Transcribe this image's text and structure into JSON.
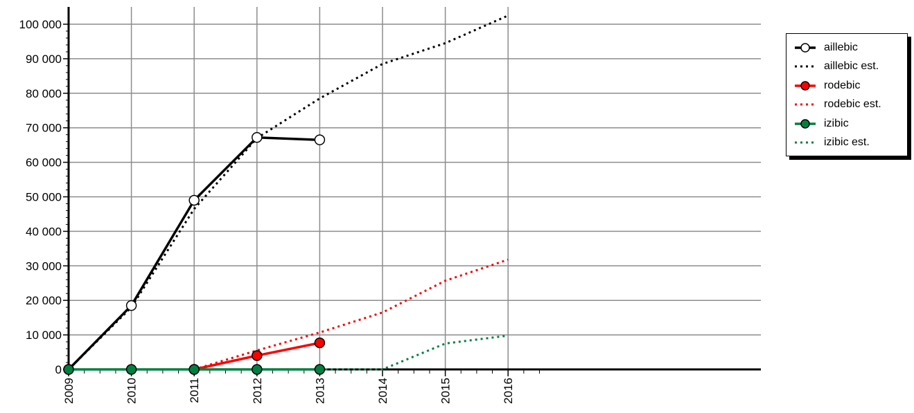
{
  "chart_data": {
    "type": "line",
    "title": "",
    "xlabel": "",
    "ylabel": "",
    "xlim": [
      2009,
      2021.5
    ],
    "ylim": [
      0,
      100000
    ],
    "x_ticks": [
      "2009",
      "2010",
      "2011",
      "2012",
      "2013",
      "2014",
      "2015",
      "2016"
    ],
    "y_ticks": [
      "0",
      "10 000",
      "20 000",
      "30 000",
      "40 000",
      "50 000",
      "60 000",
      "70 000",
      "80 000",
      "90 000",
      "100 000"
    ],
    "grid": true,
    "legend_position": "top-right",
    "series": [
      {
        "name": "aillebic",
        "style": "solid",
        "marker": "circle",
        "color": "#000000",
        "fill": "#ffffff",
        "x": [
          2009,
          2010,
          2011,
          2012,
          2013
        ],
        "y": [
          0,
          18500,
          49000,
          67200,
          66500
        ]
      },
      {
        "name": "aillebic est.",
        "style": "dotted",
        "color": "#000000",
        "x": [
          2009,
          2010,
          2011,
          2012,
          2013,
          2014,
          2015,
          2016
        ],
        "y": [
          0,
          18000,
          46500,
          67000,
          78500,
          88500,
          94500,
          102500
        ]
      },
      {
        "name": "rodebic",
        "style": "solid",
        "marker": "circle",
        "color": "#ff0000",
        "fill": "#ff0000",
        "x": [
          2011,
          2012,
          2013
        ],
        "y": [
          0,
          4000,
          7700
        ]
      },
      {
        "name": "rodebic est.",
        "style": "dotted",
        "color": "#ff0000",
        "x": [
          2011,
          2012,
          2013,
          2014,
          2015,
          2016
        ],
        "y": [
          0,
          5500,
          10700,
          16500,
          25700,
          31800
        ]
      },
      {
        "name": "izibic",
        "style": "solid",
        "marker": "circle",
        "color": "#008040",
        "fill": "#008040",
        "x": [
          2009,
          2010,
          2011,
          2012,
          2013
        ],
        "y": [
          0,
          0,
          0,
          0,
          0
        ]
      },
      {
        "name": "izibic est.",
        "style": "dotted",
        "color": "#008040",
        "x": [
          2013,
          2014,
          2015,
          2016
        ],
        "y": [
          0,
          0,
          7500,
          9800
        ]
      }
    ]
  }
}
